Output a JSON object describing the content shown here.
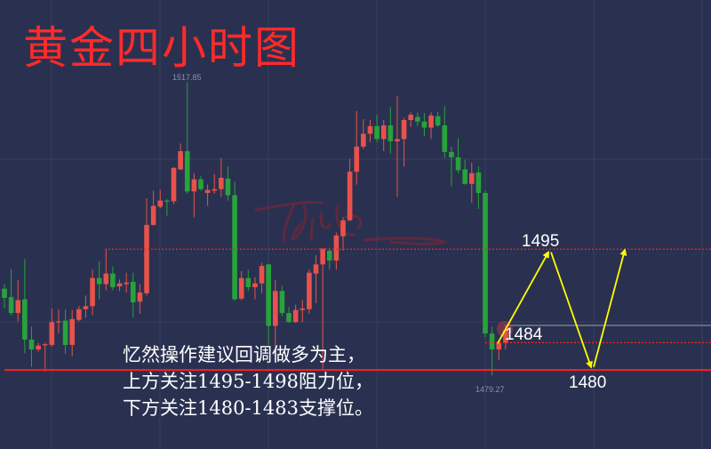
{
  "title": "黄金四小时图",
  "notes": [
    "忆然操作建议回调做多为主，",
    "上方关注1495-1498阻力位，",
    "下方关注1480-1483支撑位。"
  ],
  "colors": {
    "background": "#2a3150",
    "grid": "#363e60",
    "up": "#e8524a",
    "down": "#27a33a",
    "level_line": "#ff1f1f",
    "arrow": "#ffff00",
    "title": "#ff2a2a"
  },
  "chart_data": {
    "type": "candlestick",
    "title": "黄金四小时图",
    "ylim": [
      1469.6,
      1528.7
    ],
    "grid": true,
    "up_color": "red",
    "down_color": "green",
    "high_label": "1517.85",
    "low_label": "1479.27",
    "ohlc": [
      [
        1490.7,
        1491.3,
        1488.1,
        1489.5
      ],
      [
        1489.6,
        1493.3,
        1487.2,
        1487.5
      ],
      [
        1487.5,
        1491.8,
        1486.4,
        1489.2
      ],
      [
        1489.3,
        1494.6,
        1482.2,
        1484.0
      ],
      [
        1484.0,
        1485.7,
        1480.4,
        1482.7
      ],
      [
        1482.7,
        1483.6,
        1482.4,
        1483.2
      ],
      [
        1483.3,
        1483.6,
        1479.8,
        1483.4
      ],
      [
        1483.3,
        1488.1,
        1483.1,
        1486.3
      ],
      [
        1486.3,
        1488.0,
        1484.8,
        1486.4
      ],
      [
        1486.5,
        1488.0,
        1482.1,
        1483.3
      ],
      [
        1483.3,
        1487.9,
        1481.8,
        1486.7
      ],
      [
        1486.6,
        1488.4,
        1486.4,
        1488.0
      ],
      [
        1488.0,
        1489.8,
        1486.9,
        1488.4
      ],
      [
        1488.4,
        1493.2,
        1487.2,
        1492.1
      ],
      [
        1492.1,
        1494.3,
        1489.3,
        1491.3
      ],
      [
        1491.3,
        1495.9,
        1490.5,
        1492.7
      ],
      [
        1492.7,
        1493.6,
        1490.5,
        1490.9
      ],
      [
        1491.0,
        1491.9,
        1490.4,
        1491.4
      ],
      [
        1491.3,
        1492.8,
        1490.2,
        1491.5
      ],
      [
        1491.6,
        1492.8,
        1486.9,
        1488.9
      ],
      [
        1489.0,
        1491.3,
        1487.4,
        1490.2
      ],
      [
        1490.1,
        1502.6,
        1489.8,
        1499.1
      ],
      [
        1499.1,
        1503.6,
        1499.0,
        1501.6
      ],
      [
        1501.5,
        1503.7,
        1501.3,
        1502.3
      ],
      [
        1502.3,
        1502.5,
        1500.3,
        1502.2
      ],
      [
        1502.2,
        1506.7,
        1501.8,
        1506.6
      ],
      [
        1506.4,
        1509.8,
        1506.3,
        1508.8
      ],
      [
        1508.8,
        1517.85,
        1503.2,
        1503.5
      ],
      [
        1503.5,
        1505.9,
        1500.1,
        1505.1
      ],
      [
        1505.1,
        1505.5,
        1503.6,
        1503.8
      ],
      [
        1503.3,
        1504.4,
        1501.6,
        1503.7
      ],
      [
        1503.6,
        1505.8,
        1503.2,
        1503.8
      ],
      [
        1503.8,
        1507.9,
        1502.8,
        1505.3
      ],
      [
        1505.2,
        1506.8,
        1502.3,
        1503.0
      ],
      [
        1503.0,
        1504.8,
        1489.1,
        1489.3
      ],
      [
        1489.4,
        1493.0,
        1489.2,
        1492.1
      ],
      [
        1492.1,
        1493.2,
        1490.4,
        1490.9
      ],
      [
        1490.9,
        1492.2,
        1489.3,
        1491.4
      ],
      [
        1491.4,
        1494.1,
        1490.1,
        1493.7
      ],
      [
        1493.9,
        1494.0,
        1483.3,
        1485.8
      ],
      [
        1485.8,
        1491.8,
        1482.7,
        1490.4
      ],
      [
        1490.4,
        1491.1,
        1487.1,
        1487.5
      ],
      [
        1487.5,
        1488.3,
        1486.2,
        1486.3
      ],
      [
        1486.3,
        1488.6,
        1486.2,
        1487.9
      ],
      [
        1487.9,
        1489.2,
        1486.3,
        1488.1
      ],
      [
        1488.0,
        1493.2,
        1487.4,
        1492.8
      ],
      [
        1492.7,
        1495.1,
        1488.8,
        1493.9
      ],
      [
        1493.9,
        1496.0,
        1479.9,
        1496.0
      ],
      [
        1495.7,
        1496.1,
        1493.2,
        1494.4
      ],
      [
        1494.4,
        1498.1,
        1493.2,
        1497.7
      ],
      [
        1497.6,
        1500.1,
        1495.7,
        1499.7
      ],
      [
        1499.7,
        1507.8,
        1499.6,
        1506.1
      ],
      [
        1506.1,
        1514.1,
        1504.4,
        1509.4
      ],
      [
        1509.4,
        1513.0,
        1509.1,
        1511.1
      ],
      [
        1511.1,
        1512.9,
        1510.0,
        1512.1
      ],
      [
        1512.1,
        1513.6,
        1510.0,
        1510.4
      ],
      [
        1510.4,
        1512.9,
        1508.8,
        1512.2
      ],
      [
        1512.2,
        1514.6,
        1508.5,
        1510.1
      ],
      [
        1510.1,
        1516.1,
        1502.8,
        1510.4
      ],
      [
        1510.4,
        1513.2,
        1506.8,
        1512.9
      ],
      [
        1512.9,
        1513.9,
        1512.0,
        1513.6
      ],
      [
        1513.3,
        1513.9,
        1512.1,
        1512.7
      ],
      [
        1512.7,
        1513.8,
        1510.8,
        1511.9
      ],
      [
        1511.9,
        1513.9,
        1510.4,
        1513.5
      ],
      [
        1513.4,
        1514.0,
        1512.0,
        1512.2
      ],
      [
        1512.2,
        1514.7,
        1507.9,
        1508.7
      ],
      [
        1508.7,
        1509.4,
        1504.2,
        1508.0
      ],
      [
        1508.0,
        1510.5,
        1505.9,
        1506.3
      ],
      [
        1506.4,
        1507.7,
        1504.4,
        1504.5
      ],
      [
        1504.5,
        1507.3,
        1502.0,
        1505.9
      ],
      [
        1506.0,
        1506.8,
        1501.2,
        1503.3
      ],
      [
        1503.3,
        1503.6,
        1484.3,
        1484.8
      ],
      [
        1484.8,
        1485.7,
        1479.27,
        1482.7
      ],
      [
        1482.7,
        1483.9,
        1481.3,
        1483.6
      ],
      [
        1483.6,
        1486.0,
        1482.7,
        1485.3
      ]
    ],
    "levels": [
      {
        "label": "1495",
        "price": 1495.9,
        "style": "dotted"
      },
      {
        "label": "1484",
        "price": 1483.6,
        "style": "dotted"
      },
      {
        "label": "1480",
        "price": 1480.0,
        "style": "solid"
      }
    ],
    "projection_path": [
      1483.5,
      1495.5,
      1480.4,
      1495.8
    ]
  }
}
